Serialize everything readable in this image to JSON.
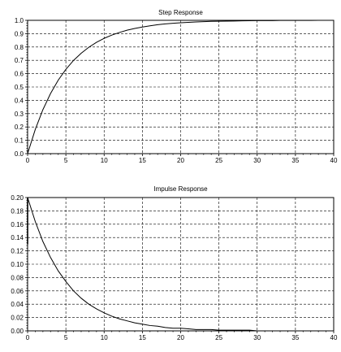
{
  "chart_data": [
    {
      "type": "line",
      "title": "Step Response",
      "xlim": [
        0,
        40
      ],
      "ylim": [
        0,
        1.0
      ],
      "x_ticks": [
        "0",
        "5",
        "10",
        "15",
        "20",
        "25",
        "30",
        "35",
        "40"
      ],
      "y_ticks": [
        "0.0",
        "0.1",
        "0.2",
        "0.3",
        "0.4",
        "0.5",
        "0.6",
        "0.7",
        "0.8",
        "0.9",
        "1.0"
      ],
      "grid": true,
      "series": [
        {
          "x": [
            0,
            1,
            2,
            3,
            4,
            5,
            6,
            7,
            8,
            9,
            10,
            11,
            12,
            13,
            14,
            15,
            16,
            17,
            18,
            19,
            20,
            21,
            22,
            23,
            24,
            25,
            26,
            27,
            28,
            29,
            30,
            31,
            32,
            33,
            34,
            35,
            36,
            37,
            38,
            39,
            40
          ],
          "values": [
            0.0,
            0.181,
            0.33,
            0.451,
            0.551,
            0.632,
            0.699,
            0.753,
            0.798,
            0.835,
            0.865,
            0.889,
            0.909,
            0.926,
            0.939,
            0.95,
            0.959,
            0.967,
            0.973,
            0.978,
            0.982,
            0.985,
            0.988,
            0.99,
            0.992,
            0.993,
            0.994,
            0.995,
            0.996,
            0.997,
            0.998,
            0.998,
            0.998,
            0.999,
            0.999,
            0.999,
            0.999,
            0.999,
            1.0,
            1.0,
            1.0
          ]
        }
      ]
    },
    {
      "type": "line",
      "title": "Impulse Response",
      "xlim": [
        0,
        40
      ],
      "ylim": [
        0,
        0.2
      ],
      "x_ticks": [
        "0",
        "5",
        "10",
        "15",
        "20",
        "25",
        "30",
        "35",
        "40"
      ],
      "y_ticks": [
        "0.00",
        "0.02",
        "0.04",
        "0.06",
        "0.08",
        "0.10",
        "0.12",
        "0.14",
        "0.16",
        "0.18",
        "0.20"
      ],
      "grid": true,
      "series": [
        {
          "x": [
            0,
            1,
            2,
            3,
            4,
            5,
            6,
            7,
            8,
            9,
            10,
            11,
            12,
            13,
            14,
            15,
            16,
            17,
            18,
            19,
            20,
            21,
            22,
            23,
            24,
            25,
            26,
            27,
            28,
            29,
            30,
            31,
            32,
            33
          ],
          "values": [
            0.2,
            0.164,
            0.134,
            0.11,
            0.09,
            0.074,
            0.06,
            0.049,
            0.04,
            0.033,
            0.027,
            0.022,
            0.018,
            0.015,
            0.012,
            0.01,
            0.008,
            0.007,
            0.005,
            0.004,
            0.004,
            0.003,
            0.002,
            0.002,
            0.002,
            0.001,
            0.001,
            0.001,
            0.001,
            0.001,
            0.0,
            0.0,
            0.0,
            0.0
          ]
        }
      ]
    }
  ]
}
